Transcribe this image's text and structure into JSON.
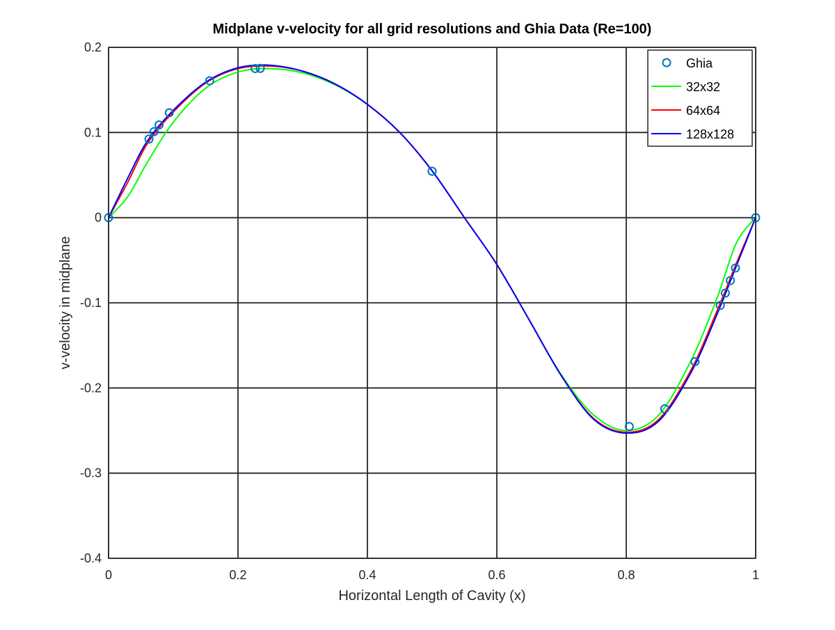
{
  "chart_data": {
    "type": "line",
    "title": "Midplane v-velocity for all grid resolutions and Ghia Data (Re=100)",
    "xlabel": "Horizontal Length of Cavity (x)",
    "ylabel": "v-velocity in midplane",
    "xlim": [
      0,
      1
    ],
    "ylim": [
      -0.4,
      0.2
    ],
    "x_ticks": [
      0,
      0.2,
      0.4,
      0.6,
      0.8,
      1
    ],
    "x_tick_labels": [
      "0",
      "0.2",
      "0.4",
      "0.6",
      "0.8",
      "1"
    ],
    "y_ticks": [
      0.2,
      0.1,
      0,
      -0.1,
      -0.2,
      -0.3,
      -0.4
    ],
    "y_tick_labels": [
      "0.2",
      "0.1",
      "0",
      "-0.1",
      "-0.2",
      "-0.3",
      "-0.4"
    ],
    "grid": true,
    "legend_position": "top-right",
    "series": [
      {
        "name": "Ghia",
        "style": "markers",
        "marker": "circle",
        "color": "#0072bd",
        "x": [
          0,
          0.0625,
          0.0703,
          0.0781,
          0.0938,
          0.1563,
          0.2266,
          0.2344,
          0.5,
          0.8047,
          0.8594,
          0.9063,
          0.9453,
          0.9531,
          0.9609,
          0.9688,
          1
        ],
        "y": [
          0,
          0.0923,
          0.101,
          0.1089,
          0.1232,
          0.1608,
          0.1751,
          0.1753,
          0.0545,
          -0.2453,
          -0.2245,
          -0.1691,
          -0.1031,
          -0.0886,
          -0.0739,
          -0.0591,
          0
        ]
      },
      {
        "name": "32x32",
        "style": "line",
        "color": "#00ff00",
        "x": [
          0,
          0.03,
          0.06,
          0.1,
          0.15,
          0.2,
          0.25,
          0.3,
          0.35,
          0.4,
          0.45,
          0.5,
          0.55,
          0.6,
          0.65,
          0.7,
          0.75,
          0.8,
          0.85,
          0.9,
          0.94,
          0.97,
          1
        ],
        "y": [
          0,
          0.025,
          0.065,
          0.112,
          0.152,
          0.171,
          0.175,
          0.17,
          0.156,
          0.133,
          0.1,
          0.055,
          0.0,
          -0.055,
          -0.12,
          -0.185,
          -0.232,
          -0.25,
          -0.232,
          -0.168,
          -0.095,
          -0.03,
          0
        ]
      },
      {
        "name": "64x64",
        "style": "line",
        "color": "#ff0000",
        "x": [
          0,
          0.03,
          0.06,
          0.1,
          0.15,
          0.2,
          0.25,
          0.3,
          0.35,
          0.4,
          0.45,
          0.5,
          0.55,
          0.6,
          0.65,
          0.7,
          0.75,
          0.8,
          0.85,
          0.9,
          0.94,
          0.97,
          1
        ],
        "y": [
          0,
          0.042,
          0.087,
          0.124,
          0.158,
          0.175,
          0.178,
          0.172,
          0.157,
          0.133,
          0.1,
          0.055,
          0.0,
          -0.055,
          -0.12,
          -0.186,
          -0.236,
          -0.252,
          -0.237,
          -0.179,
          -0.11,
          -0.054,
          0
        ]
      },
      {
        "name": "128x128",
        "style": "line",
        "color": "#0000ff",
        "x": [
          0,
          0.03,
          0.06,
          0.1,
          0.15,
          0.2,
          0.25,
          0.3,
          0.35,
          0.4,
          0.45,
          0.5,
          0.55,
          0.6,
          0.65,
          0.7,
          0.75,
          0.8,
          0.85,
          0.9,
          0.94,
          0.97,
          1
        ],
        "y": [
          0,
          0.047,
          0.09,
          0.126,
          0.159,
          0.176,
          0.179,
          0.172,
          0.157,
          0.133,
          0.1,
          0.055,
          0.0,
          -0.055,
          -0.12,
          -0.186,
          -0.237,
          -0.253,
          -0.239,
          -0.182,
          -0.114,
          -0.057,
          0
        ]
      }
    ]
  }
}
